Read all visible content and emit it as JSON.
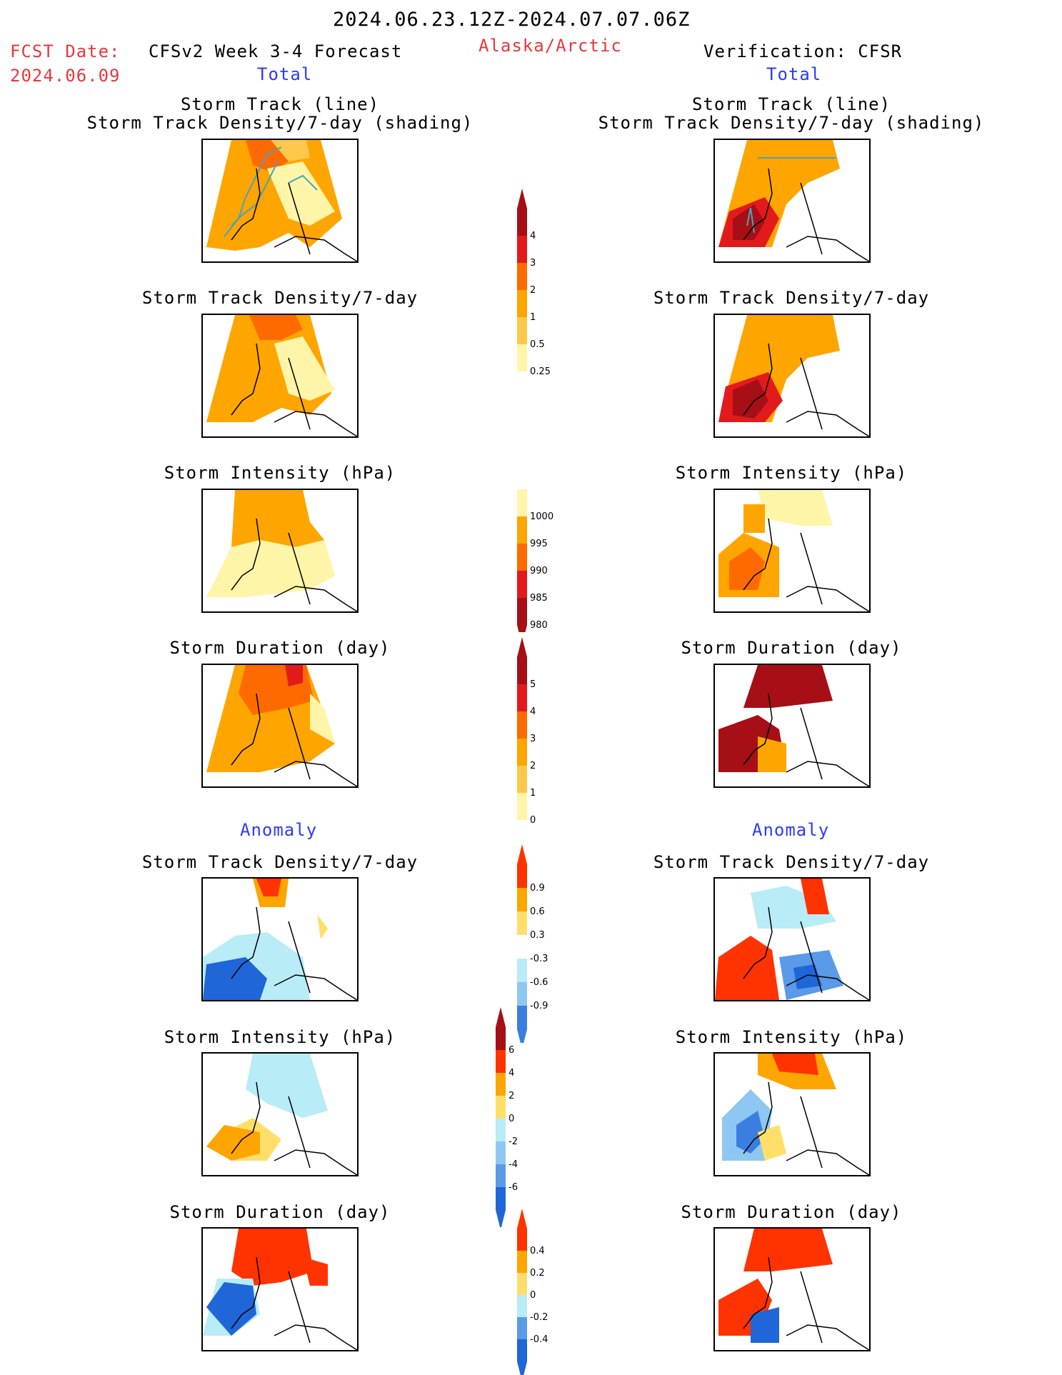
{
  "header": {
    "date_range": "2024.06.23.12Z-2024.07.07.06Z",
    "fcst_label": "FCST Date:",
    "fcst_date": "2024.06.09",
    "model_title": "CFSv2 Week 3-4 Forecast",
    "region": "Alaska/Arctic",
    "verification": "Verification: CFSR",
    "left_total": "Total",
    "right_total": "Total",
    "left_anomaly": "Anomaly",
    "right_anomaly": "Anomaly"
  },
  "panels": {
    "track_line": "Storm Track (line)",
    "track_shading": "Storm Track Density/7-day (shading)",
    "density": "Storm Track Density/7-day",
    "intensity": "Storm Intensity (hPa)",
    "duration": "Storm Duration (day)"
  },
  "colorbars": {
    "density": {
      "labels": [
        "4",
        "3",
        "2",
        "1",
        "0.5",
        "0.25"
      ],
      "colors": [
        "#a50f15",
        "#e31a1c",
        "#ff6a00",
        "#ffa500",
        "#ffc84a",
        "#fff5a8"
      ]
    },
    "intensity": {
      "labels": [
        "1000",
        "995",
        "990",
        "985",
        "980"
      ],
      "colors": [
        "#fff5a8",
        "#ffa500",
        "#ff6a00",
        "#e31a1c",
        "#a50f15"
      ]
    },
    "duration": {
      "labels": [
        "5",
        "4",
        "3",
        "2",
        "1",
        "0"
      ],
      "colors": [
        "#a50f15",
        "#e31a1c",
        "#ff6a00",
        "#ffa500",
        "#ffc84a",
        "#fff5a8"
      ]
    },
    "anom_density": {
      "labels": [
        "0.9",
        "0.6",
        "0.3",
        "-0.3",
        "-0.6",
        "-0.9"
      ],
      "colors": [
        "#ff3300",
        "#ffa500",
        "#ffdf6a",
        "#ffffff",
        "#b8ecf7",
        "#8ec8f2",
        "#3a7fe0"
      ]
    },
    "anom_intensity": {
      "labels": [
        "6",
        "4",
        "2",
        "0",
        "-2",
        "-4",
        "-6"
      ],
      "colors": [
        "#a50f15",
        "#ff3300",
        "#ffa500",
        "#ffdf6a",
        "#b8ecf7",
        "#8ec8f2",
        "#5a9ae8",
        "#1f66d8"
      ]
    },
    "anom_duration": {
      "labels": [
        "0.4",
        "0.2",
        "0",
        "-0.2",
        "-0.4"
      ],
      "colors": [
        "#ff3300",
        "#ffa500",
        "#ffdf6a",
        "#b8ecf7",
        "#5a9ae8",
        "#1f66d8"
      ]
    }
  },
  "colors": {
    "dark_red": "#a50f15",
    "red": "#e31a1c",
    "orange_red": "#ff6a00",
    "orange": "#ffa500",
    "light_orange": "#ffc84a",
    "pale_yellow": "#fff5a8",
    "light_blue": "#b8ecf7",
    "mid_blue": "#5a9ae8",
    "blue": "#1f66d8",
    "track_line": "#4aa3b8"
  }
}
